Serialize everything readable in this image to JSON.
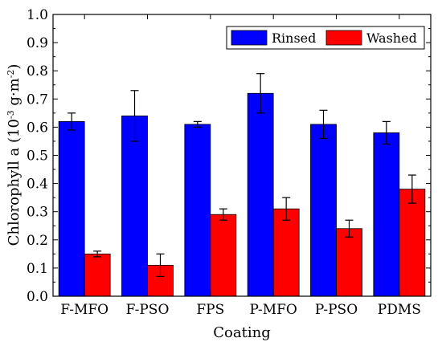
{
  "chart_data": {
    "type": "bar",
    "xlabel": "Coating",
    "ylabel_main": "Chlorophyll a (10",
    "ylabel_sup1": "-3",
    "ylabel_mid": " g·m",
    "ylabel_sup2": "-2",
    "ylabel_end": ")",
    "ylim": [
      0.0,
      1.0
    ],
    "yticks": [
      "0.0",
      "0.1",
      "0.2",
      "0.3",
      "0.4",
      "0.5",
      "0.6",
      "0.7",
      "0.8",
      "0.9",
      "1.0"
    ],
    "categories": [
      "F-MFO",
      "F-PSO",
      "FPS",
      "P-MFO",
      "P-PSO",
      "PDMS"
    ],
    "series": [
      {
        "name": "Rinsed",
        "color": "#0000ff",
        "values": [
          0.62,
          0.64,
          0.61,
          0.72,
          0.61,
          0.58
        ],
        "errors": [
          0.03,
          0.09,
          0.01,
          0.07,
          0.05,
          0.04
        ]
      },
      {
        "name": "Washed",
        "color": "#ff0000",
        "values": [
          0.15,
          0.11,
          0.29,
          0.31,
          0.24,
          0.38
        ],
        "errors": [
          0.01,
          0.04,
          0.02,
          0.04,
          0.03,
          0.05
        ]
      }
    ],
    "legend_position": "top-right",
    "grid": false
  }
}
